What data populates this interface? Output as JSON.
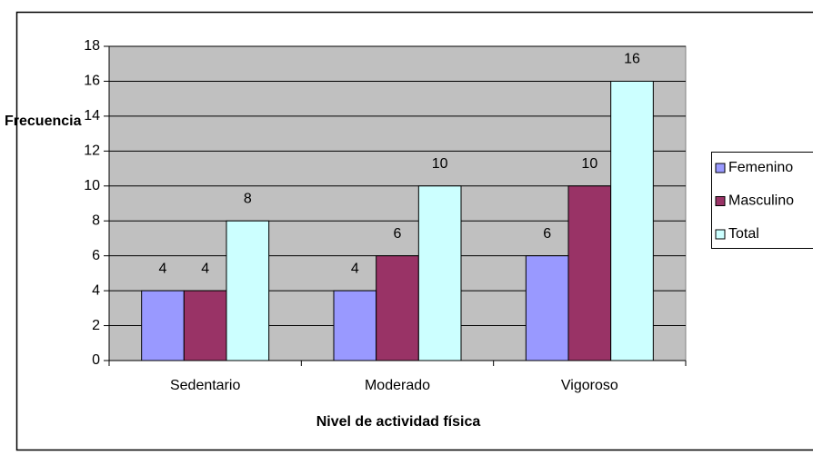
{
  "chart_data": {
    "type": "bar",
    "ylabel": "Frecuencia",
    "xlabel": "Nivel de actividad física",
    "categories": [
      "Sedentario",
      "Moderado",
      "Vigoroso"
    ],
    "series": [
      {
        "name": "Femenino",
        "color": "#9999ff",
        "values": [
          4,
          4,
          6
        ]
      },
      {
        "name": "Masculino",
        "color": "#993366",
        "values": [
          4,
          6,
          10
        ]
      },
      {
        "name": "Total",
        "color": "#ccffff",
        "values": [
          8,
          10,
          16
        ]
      }
    ],
    "ylim": [
      0,
      18
    ],
    "yticks": [
      0,
      2,
      4,
      6,
      8,
      10,
      12,
      14,
      16,
      18
    ],
    "grid": true,
    "legend": "right",
    "plot_background": "#c0c0c0"
  }
}
